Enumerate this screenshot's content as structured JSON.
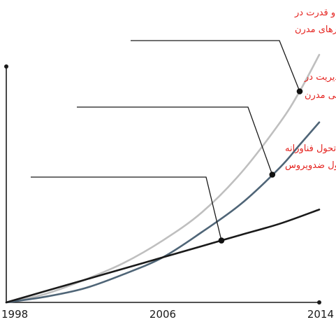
{
  "chart_data": {
    "type": "line",
    "x_ticks": [
      "1998",
      "2006",
      "2014"
    ],
    "xlim": [
      1998,
      2014
    ],
    "y_axis_labels": "none",
    "grid": false,
    "legend": "none",
    "series": [
      {
        "color": "#bfbfbf",
        "points": [
          [
            1998,
            0
          ],
          [
            2000,
            3
          ],
          [
            2002,
            8
          ],
          [
            2004,
            14
          ],
          [
            2006,
            22
          ],
          [
            2008,
            32
          ],
          [
            2010,
            46
          ],
          [
            2012,
            64
          ],
          [
            2013,
            75
          ],
          [
            2014,
            88
          ]
        ]
      },
      {
        "color": "#4f6577",
        "points": [
          [
            1998,
            0
          ],
          [
            2000,
            2
          ],
          [
            2002,
            5
          ],
          [
            2004,
            10
          ],
          [
            2006,
            16
          ],
          [
            2008,
            25
          ],
          [
            2010,
            35
          ],
          [
            2012,
            48
          ],
          [
            2013,
            56
          ],
          [
            2014,
            64
          ]
        ]
      },
      {
        "color": "#1a1a1a",
        "points": [
          [
            1998,
            0
          ],
          [
            2000,
            4
          ],
          [
            2002,
            8
          ],
          [
            2004,
            12
          ],
          [
            2006,
            16
          ],
          [
            2008,
            20
          ],
          [
            2010,
            24
          ],
          [
            2012,
            28
          ],
          [
            2014,
            33
          ]
        ]
      }
    ],
    "annotations": [
      {
        "series": 0,
        "x": 2013,
        "lines": [
          "میزان افزایش پیچیدگی و قدرت در",
          "حملات هدفدار و بدافزارهای مدرن"
        ]
      },
      {
        "series": 1,
        "x": 2011.6,
        "lines": [
          "میزان پیچیدگی و سختی مدیریت در",
          "محیط های آی تی و شبکه های سازمانی مدرن"
        ]
      },
      {
        "series": 2,
        "x": 2009,
        "lines": [
          "میزان افزایش قدرت و تحول فناورانه",
          "در نرم افزارهای سنتی و معمول ضدویروس"
        ]
      }
    ],
    "colors": {
      "axis": "#1a1a1a",
      "annotation_text": "#e52420",
      "leader": "#1a1a1a",
      "marker": "#111111"
    }
  }
}
